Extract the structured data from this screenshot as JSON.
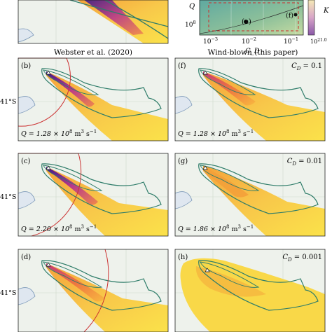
{
  "header": {
    "left_title": "Webster et al. (2020)",
    "right_title": "Wind-blown (this paper)"
  },
  "inset": {
    "x_label": "C_D",
    "x_ticks": [
      "10",
      "10",
      "10"
    ],
    "x_tick_exps": [
      "−3",
      "−2",
      "−1"
    ],
    "y_label": "Q",
    "y_tick": "10",
    "y_tick_exp": "8",
    "marker_e": "(e)",
    "marker_f": "(f)",
    "colorbar_label": "K",
    "colorbar_tick": "10",
    "colorbar_tick_exp": "21.0"
  },
  "lat_label": "41°S",
  "panels": [
    {
      "id": "b",
      "label": "(b)",
      "text": "Q = 1.28 × 10",
      "exp": "8",
      "unit": " m",
      "unit_exp": "3",
      "unit2": " s",
      "unit2_exp": "−1"
    },
    {
      "id": "c",
      "label": "(c)",
      "text": "Q = 2.20 × 10",
      "exp": "8",
      "unit": " m",
      "unit_exp": "3",
      "unit2": " s",
      "unit2_exp": "−1"
    },
    {
      "id": "d",
      "label": "(d)"
    },
    {
      "id": "f",
      "label": "(f)",
      "cd": "C",
      "cd_sub": "D",
      "cd_val": " = 0.1",
      "text": "Q = 1.28 × 10",
      "exp": "8",
      "unit": " m",
      "unit_exp": "3",
      "unit2": " s",
      "unit2_exp": "−1"
    },
    {
      "id": "g",
      "label": "(g)",
      "cd": "C",
      "cd_sub": "D",
      "cd_val": " = 0.01",
      "text": "Q = 1.86 × 10",
      "exp": "8",
      "unit": " m",
      "unit_exp": "3",
      "unit2": " s",
      "unit2_exp": "−1"
    },
    {
      "id": "h",
      "label": "(h)",
      "cd": "C",
      "cd_sub": "D",
      "cd_val": " = 0.001"
    }
  ]
}
